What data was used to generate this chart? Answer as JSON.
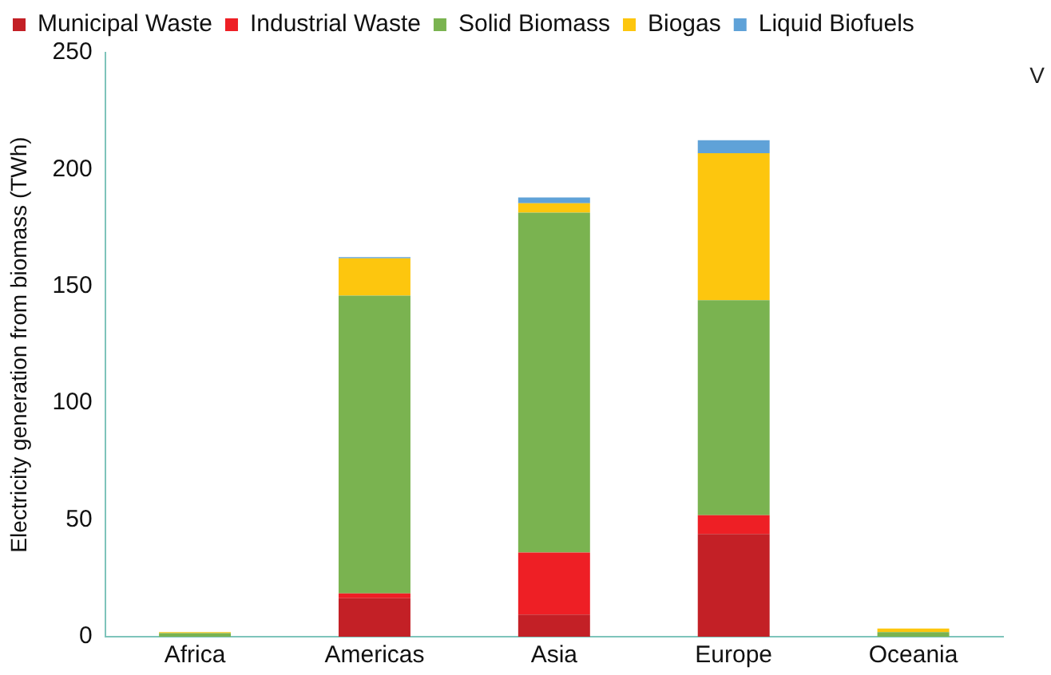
{
  "chart_data": {
    "type": "bar",
    "stacked": true,
    "ylabel": "Electricity generation from biomass (TWh)",
    "categories": [
      "Africa",
      "Americas",
      "Asia",
      "Europe",
      "Oceania"
    ],
    "series": [
      {
        "name": "Municipal Waste",
        "color": "#c32026",
        "values": [
          0,
          16.5,
          9.5,
          44,
          0
        ]
      },
      {
        "name": "Industrial Waste",
        "color": "#ee1f25",
        "values": [
          0,
          2,
          26.5,
          8,
          0
        ]
      },
      {
        "name": "Solid Biomass",
        "color": "#7ab350",
        "values": [
          1.5,
          127.5,
          145.5,
          92,
          2
        ]
      },
      {
        "name": "Biogas",
        "color": "#fdc60e",
        "values": [
          0.5,
          16,
          4,
          63,
          1.5
        ]
      },
      {
        "name": "Liquid Biofuels",
        "color": "#5fa2d8",
        "values": [
          0,
          0.5,
          2.5,
          5.5,
          0
        ]
      }
    ],
    "ylim": [
      0,
      250
    ],
    "yticks": [
      0,
      50,
      100,
      150,
      200,
      250
    ],
    "grid": false,
    "legend": "top",
    "annotations": [
      "V"
    ]
  }
}
